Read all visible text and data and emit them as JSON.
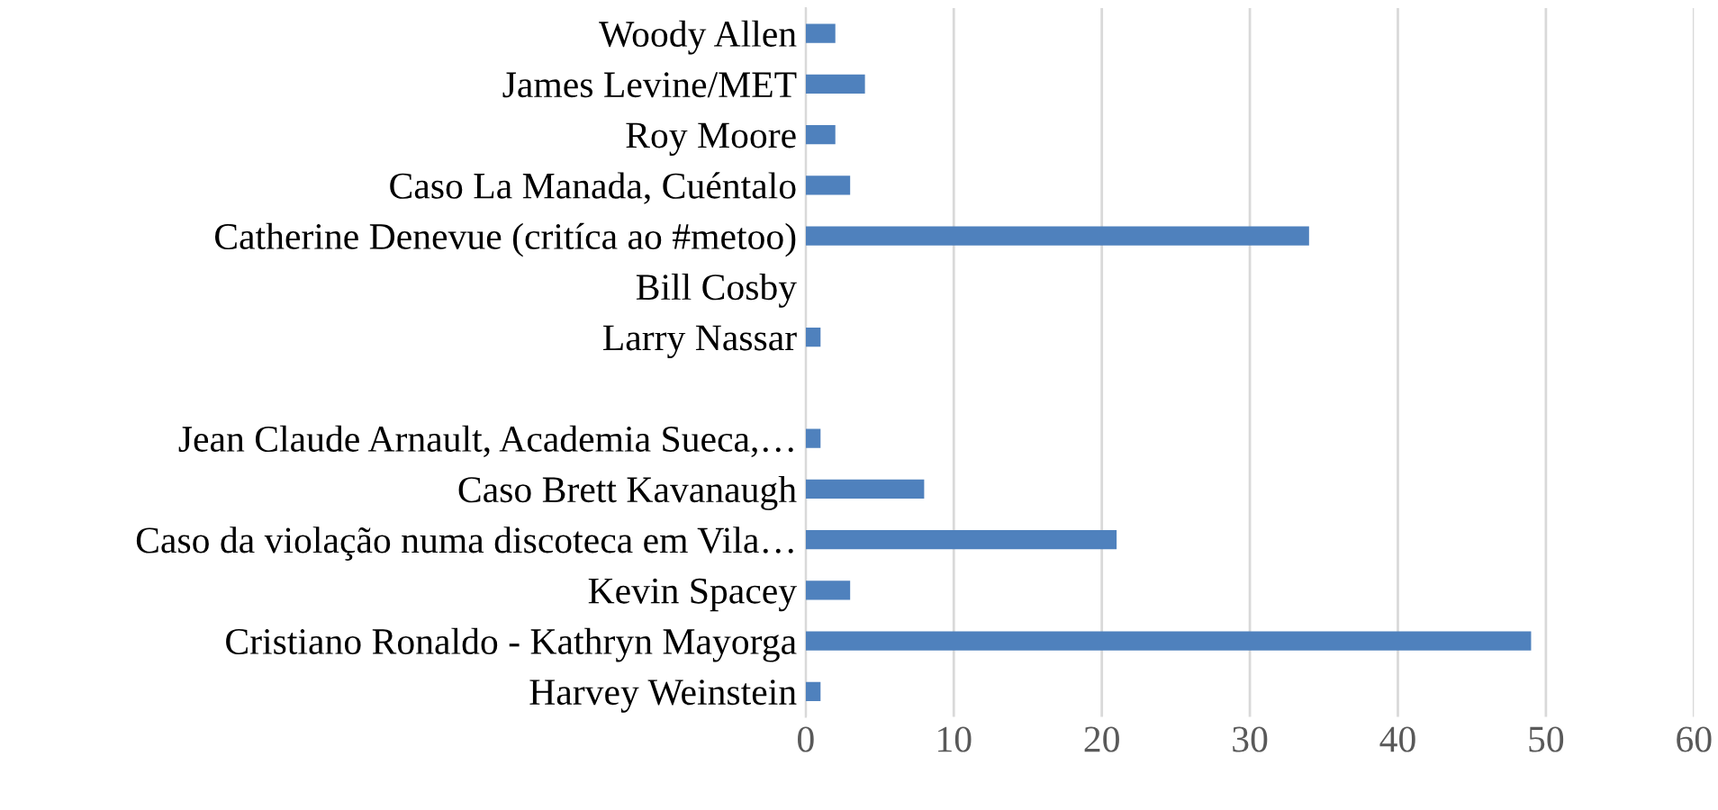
{
  "chart_data": {
    "type": "bar",
    "orientation": "horizontal",
    "categories": [
      "Woody Allen",
      "James Levine/MET",
      "Roy Moore",
      "Caso La Manada, Cuéntalo",
      "Catherine Denevue (critíca ao #metoo)",
      "Bill Cosby",
      "Larry Nassar",
      null,
      "Jean Claude Arnault, Academia Sueca,…",
      "Caso Brett Kavanaugh",
      "Caso da violação numa discoteca em Vila…",
      "Kevin Spacey",
      "Cristiano Ronaldo - Kathryn Mayorga",
      "Harvey Weinstein"
    ],
    "values": [
      2,
      4,
      2,
      3,
      34,
      0,
      1,
      0,
      1,
      8,
      21,
      3,
      49,
      1
    ],
    "color": "#4f81bd",
    "xlim": [
      0,
      60
    ],
    "xticks": [
      0,
      10,
      20,
      30,
      40,
      50,
      60
    ],
    "grid": "x",
    "legend": false
  }
}
